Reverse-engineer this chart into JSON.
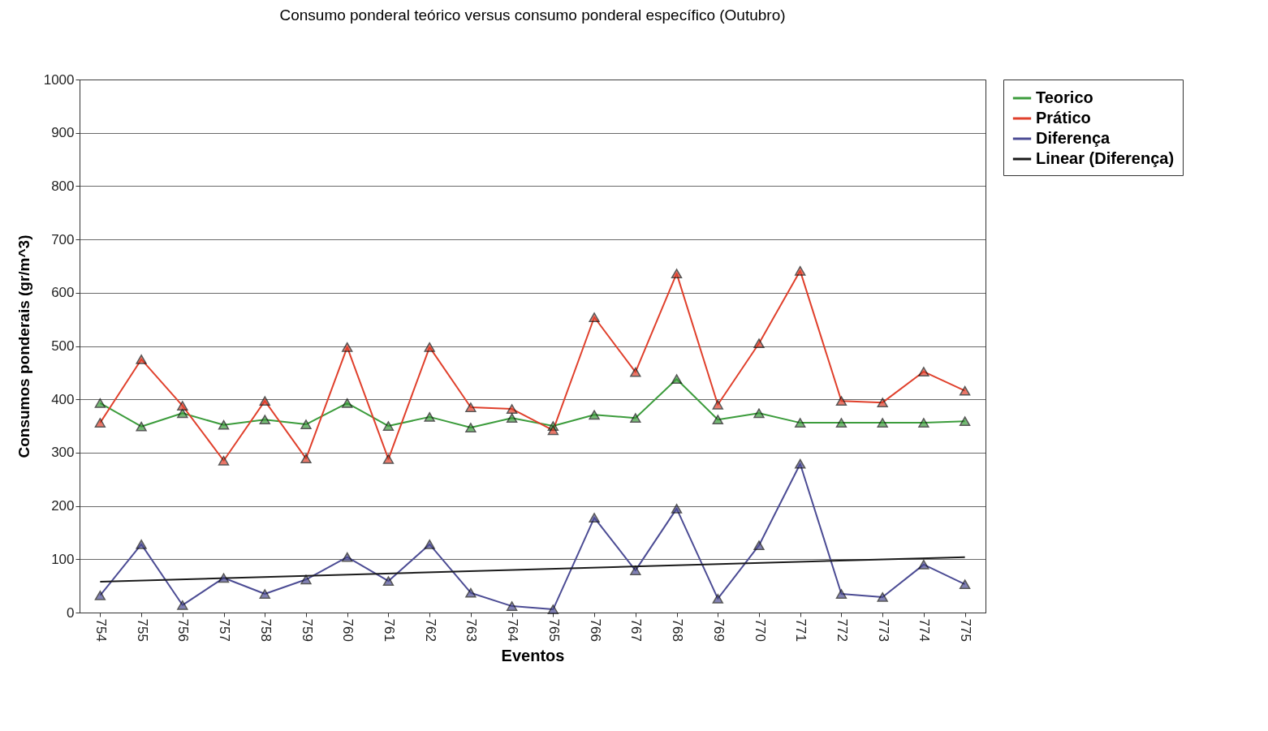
{
  "chart_data": {
    "type": "line",
    "title": "Consumo ponderal teórico versus consumo ponderal específico (Outubro)",
    "xlabel": "Eventos",
    "ylabel": "Consumos ponderais (gr/m^3)",
    "categories": [
      "754",
      "755",
      "756",
      "757",
      "758",
      "759",
      "760",
      "761",
      "762",
      "763",
      "764",
      "765",
      "766",
      "767",
      "768",
      "769",
      "770",
      "771",
      "772",
      "773",
      "774",
      "775"
    ],
    "series": [
      {
        "name": "Teorico",
        "color": "#3c9c3c",
        "values": [
          393,
          349,
          374,
          352,
          362,
          353,
          393,
          350,
          367,
          347,
          365,
          350,
          371,
          365,
          438,
          362,
          374,
          356,
          356,
          356,
          356,
          359
        ]
      },
      {
        "name": "Prático",
        "color": "#e0402c",
        "values": [
          356,
          475,
          388,
          285,
          397,
          289,
          498,
          288,
          498,
          385,
          382,
          342,
          554,
          451,
          636,
          390,
          505,
          641,
          397,
          394,
          452,
          416
        ]
      },
      {
        "name": "Diferença",
        "color": "#4c4c94",
        "values": [
          32,
          128,
          14,
          65,
          35,
          62,
          104,
          59,
          128,
          37,
          12,
          6,
          178,
          79,
          195,
          26,
          126,
          279,
          35,
          29,
          90,
          53
        ]
      },
      {
        "name": "Linear (Diferença)",
        "type": "line",
        "color": "#1a1a1a",
        "marker": "none",
        "x": [
          "754",
          "775"
        ],
        "values": [
          58,
          104
        ]
      }
    ],
    "ylim": [
      0,
      1000
    ],
    "yticks": [
      0,
      100,
      200,
      300,
      400,
      500,
      600,
      700,
      800,
      900,
      1000
    ],
    "grid": "y",
    "legend": "right",
    "marker": "triangle"
  }
}
